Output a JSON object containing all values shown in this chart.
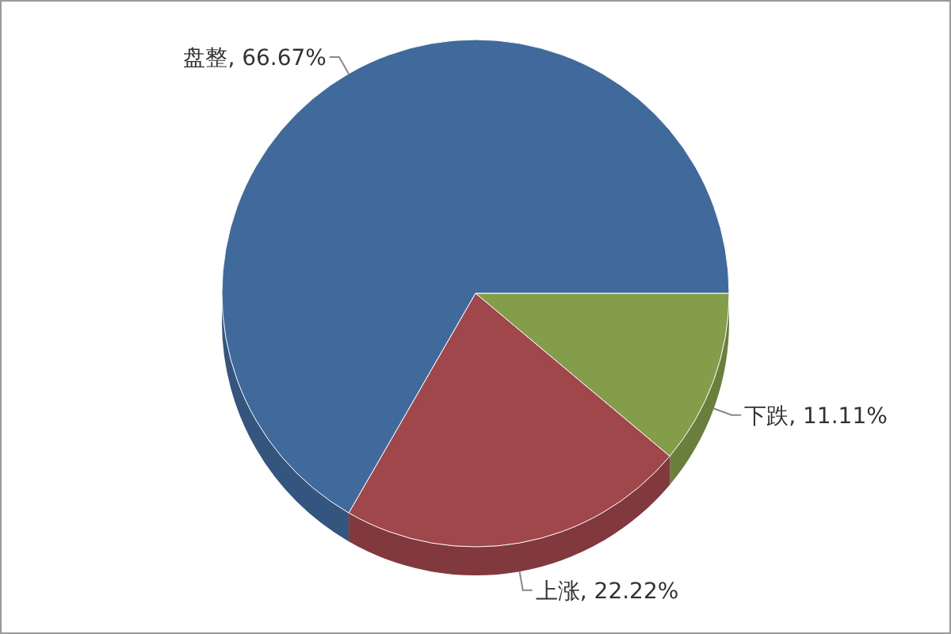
{
  "chart_data": {
    "type": "pie",
    "categories": [
      "下跌",
      "上涨",
      "盘整"
    ],
    "values": [
      11.11,
      22.22,
      66.67
    ],
    "colors": [
      "#849d4a",
      "#a0474b",
      "#40699c"
    ],
    "value_labels": [
      ", 11.11%",
      ", 22.22%",
      ", 66.67%"
    ]
  }
}
